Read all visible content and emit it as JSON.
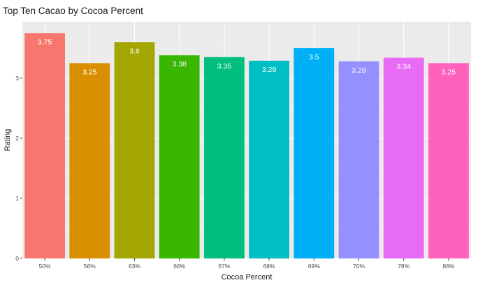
{
  "chart_data": {
    "type": "bar",
    "title": "Top Ten Cacao by Cocoa Percent",
    "xlabel": "Cocoa Percent",
    "ylabel": "Rating",
    "categories": [
      "50%",
      "56%",
      "63%",
      "66%",
      "67%",
      "68%",
      "69%",
      "70%",
      "78%",
      "86%"
    ],
    "values": [
      3.75,
      3.25,
      3.6,
      3.38,
      3.35,
      3.29,
      3.5,
      3.28,
      3.34,
      3.25
    ],
    "value_labels": [
      "3.75",
      "3.25",
      "3.6",
      "3.38",
      "3.35",
      "3.29",
      "3.5",
      "3.28",
      "3.34",
      "3.25"
    ],
    "colors": [
      "#F8766D",
      "#D89000",
      "#A3A500",
      "#39B600",
      "#00BF7D",
      "#00BFC4",
      "#00B0F6",
      "#9590FF",
      "#E76BF3",
      "#FF62BC"
    ],
    "yticks": [
      0,
      1,
      2,
      3
    ],
    "ylim": [
      0,
      3.94
    ],
    "grid": true,
    "panel_background": "#EBEBEB",
    "grid_color": "#FFFFFF",
    "legend": "none"
  }
}
